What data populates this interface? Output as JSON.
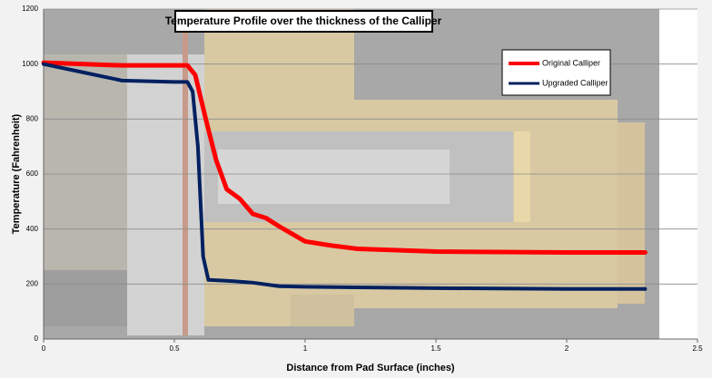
{
  "chart_data": {
    "type": "line",
    "title": "Temperature Profile over the thickness of the Calliper",
    "xlabel": "Distance from Pad Surface (inches)",
    "ylabel": "Temperature (Fahrenheit)",
    "xlim": [
      0,
      2.5
    ],
    "xticks": [
      0,
      0.5,
      1,
      1.5,
      2,
      2.5
    ],
    "ylim": [
      0,
      1200
    ],
    "yticks": [
      0,
      200,
      400,
      600,
      800,
      1000,
      1200
    ],
    "grid": true,
    "series": [
      {
        "name": "Original Calliper",
        "color": "#ff0000",
        "x": [
          0,
          0.3,
          0.55,
          0.58,
          0.62,
          0.66,
          0.7,
          0.75,
          0.8,
          0.85,
          0.9,
          1.0,
          1.1,
          1.2,
          1.5,
          2.0,
          2.3
        ],
        "values": [
          1005,
          995,
          995,
          960,
          800,
          650,
          545,
          510,
          455,
          440,
          410,
          355,
          340,
          328,
          318,
          315,
          315
        ]
      },
      {
        "name": "Upgraded Calliper",
        "color": "#002060",
        "x": [
          0,
          0.15,
          0.3,
          0.5,
          0.55,
          0.57,
          0.59,
          0.61,
          0.63,
          0.7,
          0.8,
          0.9,
          1.0,
          1.5,
          2.0,
          2.3
        ],
        "values": [
          1000,
          970,
          940,
          935,
          935,
          900,
          700,
          300,
          215,
          212,
          205,
          192,
          190,
          185,
          182,
          182
        ]
      }
    ]
  }
}
